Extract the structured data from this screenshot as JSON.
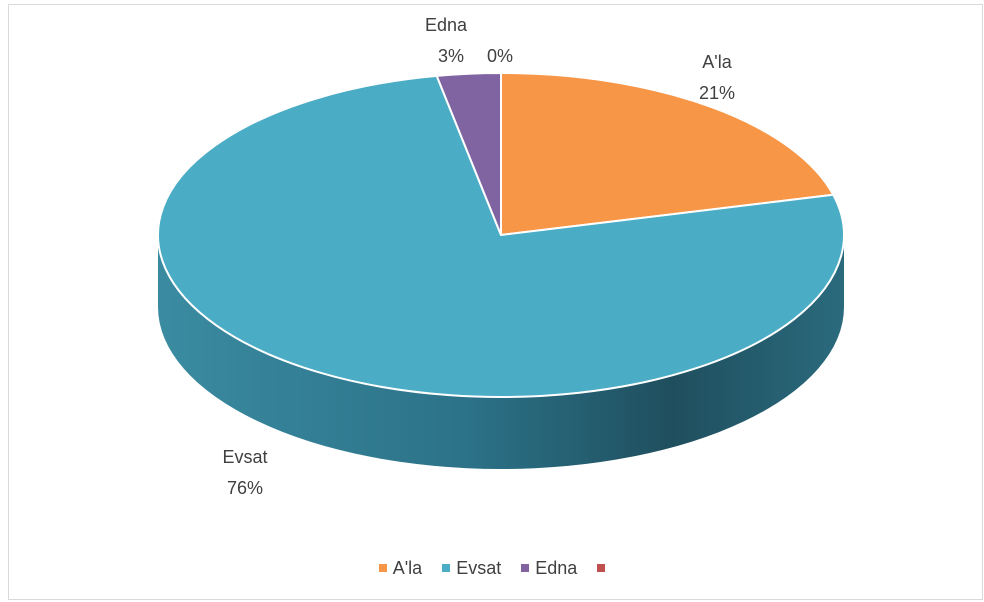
{
  "chart_data": {
    "type": "pie",
    "style": "3d",
    "slices": [
      {
        "name": "A'la",
        "value": 21,
        "label": "21%",
        "color": "#f79646"
      },
      {
        "name": "Evsat",
        "value": 76,
        "label": "76%",
        "color": "#4bacc6"
      },
      {
        "name": "Edna",
        "value": 3,
        "label": "3%",
        "color": "#8064a2"
      },
      {
        "name": "",
        "value": 0,
        "label": "0%",
        "color": "#c0504d"
      }
    ],
    "legend_position": "bottom"
  }
}
